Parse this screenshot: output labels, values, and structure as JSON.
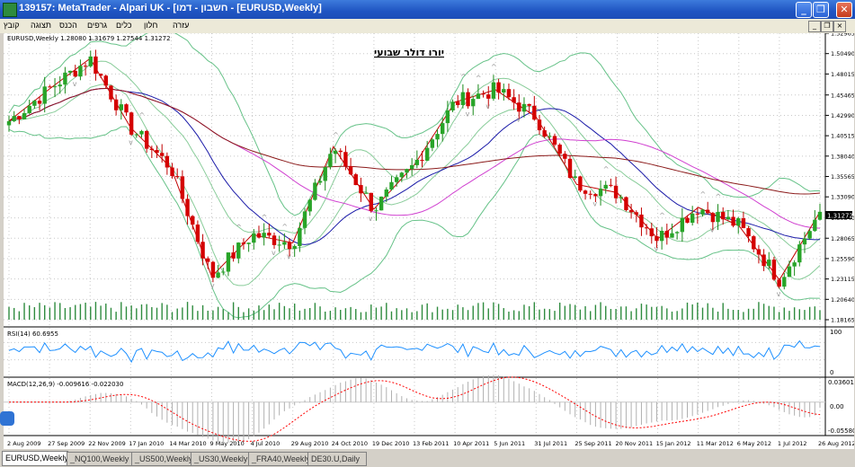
{
  "window": {
    "title": "139157: MetaTrader - Alpari UK - [חשבון - דמו - [EURUSD,Weekly]"
  },
  "menu": {
    "items": [
      "קובץ",
      "תצוגה",
      "הכנס",
      "גרפים",
      "כלים",
      "חלון",
      "עזרה"
    ]
  },
  "chart": {
    "symbol_label": "EURUSD,Weekly  1.28080 1.31679 1.27544 1.31272",
    "heading": "יורו דולר שבועי",
    "price_ticks": [
      "1.52965",
      "1.50490",
      "1.48015",
      "1.45465",
      "1.42990",
      "1.40515",
      "1.38040",
      "1.35565",
      "1.33090",
      "1.30540",
      "1.28065",
      "1.25590",
      "1.23115",
      "1.20640",
      "1.18165"
    ],
    "current_price": "1.31272",
    "date_ticks": [
      "2 Aug 2009",
      "27 Sep 2009",
      "22 Nov 2009",
      "17 Jan 2010",
      "14 Mar 2010",
      "9 May 2010",
      "4 Jul 2010",
      "29 Aug 2010",
      "24 Oct 2010",
      "19 Dec 2010",
      "13 Feb 2011",
      "10 Apr 2011",
      "5 Jun 2011",
      "31 Jul 2011",
      "25 Sep 2011",
      "20 Nov 2011",
      "15 Jan 2012",
      "11 Mar 2012",
      "6 May 2012",
      "1 Jul 2012",
      "26 Aug 2012"
    ]
  },
  "rsi": {
    "label": "RSI(14) 60.6955",
    "ticks": [
      "100",
      "0"
    ]
  },
  "macd": {
    "label": "MACD(12,26,9) -0.009616 -0.022030",
    "ticks": [
      "0.036012",
      "0.00",
      "-0.055800"
    ]
  },
  "tabs": [
    "EURUSD,Weekly",
    "_NQ100,Weekly",
    "_US500,Weekly",
    "_US30,Weekly",
    "_FRA40,Weekly",
    "DE30.U,Daily"
  ],
  "chart_data": {
    "type": "candlestick",
    "symbol": "EURUSD",
    "timeframe": "Weekly",
    "ohlc": {
      "open": 1.2808,
      "high": 1.31679,
      "low": 1.27544,
      "close": 1.31272
    },
    "y_range": [
      1.18165,
      1.52965
    ],
    "x_range": [
      "2 Aug 2009",
      "26 Aug 2012"
    ],
    "close_approx": [
      {
        "date": "2 Aug 2009",
        "close": 1.423
      },
      {
        "date": "27 Sep 2009",
        "close": 1.462
      },
      {
        "date": "22 Nov 2009",
        "close": 1.499
      },
      {
        "date": "17 Jan 2010",
        "close": 1.415
      },
      {
        "date": "14 Mar 2010",
        "close": 1.366
      },
      {
        "date": "9 May 2010",
        "close": 1.234
      },
      {
        "date": "4 Jul 2010",
        "close": 1.285
      },
      {
        "date": "29 Aug 2010",
        "close": 1.275
      },
      {
        "date": "24 Oct 2010",
        "close": 1.392
      },
      {
        "date": "19 Dec 2010",
        "close": 1.316
      },
      {
        "date": "13 Feb 2011",
        "close": 1.37
      },
      {
        "date": "10 Apr 2011",
        "close": 1.446
      },
      {
        "date": "5 Jun 2011",
        "close": 1.461
      },
      {
        "date": "31 Jul 2011",
        "close": 1.428
      },
      {
        "date": "25 Sep 2011",
        "close": 1.346
      },
      {
        "date": "20 Nov 2011",
        "close": 1.336
      },
      {
        "date": "15 Jan 2012",
        "close": 1.28
      },
      {
        "date": "11 Mar 2012",
        "close": 1.318
      },
      {
        "date": "6 May 2012",
        "close": 1.296
      },
      {
        "date": "1 Jul 2012",
        "close": 1.23
      },
      {
        "date": "26 Aug 2012",
        "close": 1.3127
      }
    ],
    "rsi_last": 60.6955,
    "macd_last": [
      -0.009616,
      -0.02203
    ]
  }
}
